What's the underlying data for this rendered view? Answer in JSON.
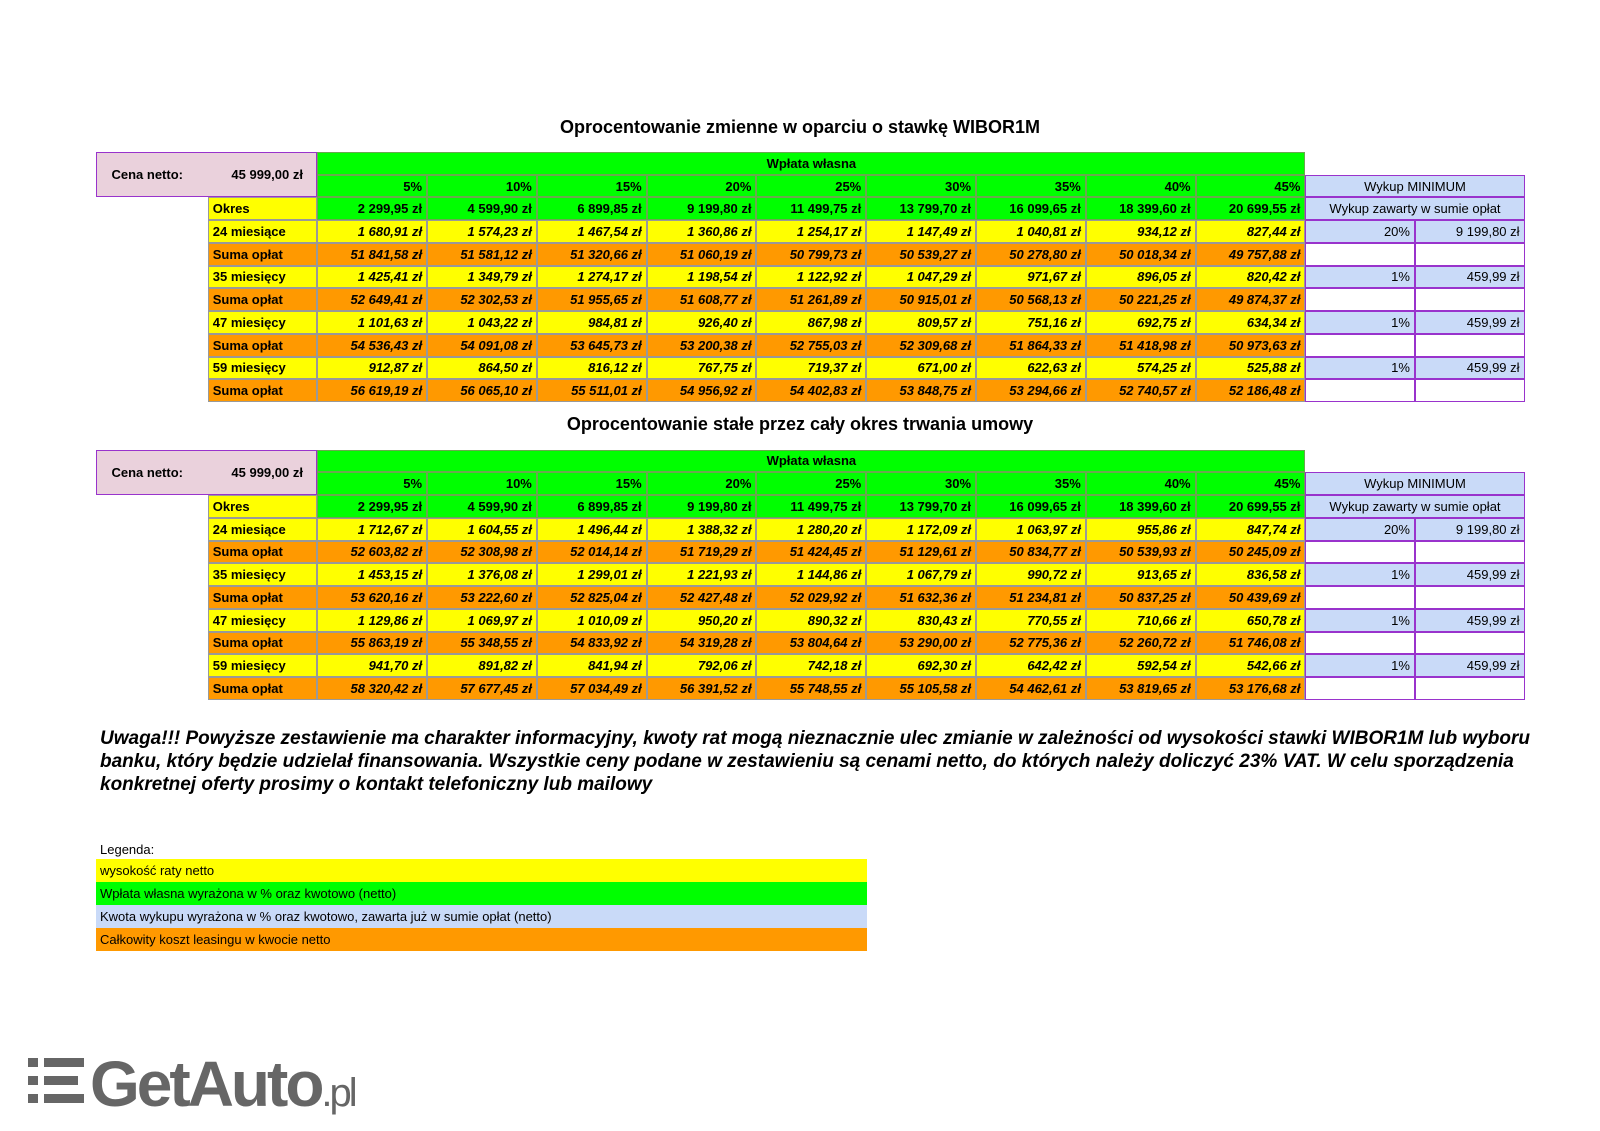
{
  "tables": [
    {
      "title": "Oprocentowanie zmienne w oparciu o stawkę WIBOR1M",
      "price_label": "Cena netto:",
      "price": "45 999,00 zł",
      "group_header": "Wpłata własna",
      "buyout_header": "Wykup MINIMUM",
      "percents": [
        "5%",
        "10%",
        "15%",
        "20%",
        "25%",
        "30%",
        "35%",
        "40%",
        "45%"
      ],
      "okres_label": "Okres",
      "down_payments": [
        "2 299,95 zł",
        "4 599,90 zł",
        "6 899,85 zł",
        "9 199,80 zł",
        "11 499,75 zł",
        "13 799,70 zł",
        "16 099,65 zł",
        "18 399,60 zł",
        "20 699,55 zł"
      ],
      "buyout_desc": "Wykup zawarty w sumie opłat",
      "periods": [
        {
          "label": "24 miesiące",
          "rates": [
            "1 680,91 zł",
            "1 574,23 zł",
            "1 467,54 zł",
            "1 360,86 zł",
            "1 254,17 zł",
            "1 147,49 zł",
            "1 040,81 zł",
            "934,12 zł",
            "827,44 zł"
          ],
          "buyout_pct": "20%",
          "buyout_amount": "9 199,80 zł",
          "sum_label": "Suma opłat",
          "sums": [
            "51 841,58 zł",
            "51 581,12 zł",
            "51 320,66 zł",
            "51 060,19 zł",
            "50 799,73 zł",
            "50 539,27 zł",
            "50 278,80 zł",
            "50 018,34 zł",
            "49 757,88 zł"
          ]
        },
        {
          "label": "35 miesięcy",
          "rates": [
            "1 425,41 zł",
            "1 349,79 zł",
            "1 274,17 zł",
            "1 198,54 zł",
            "1 122,92 zł",
            "1 047,29 zł",
            "971,67 zł",
            "896,05 zł",
            "820,42 zł"
          ],
          "buyout_pct": "1%",
          "buyout_amount": "459,99 zł",
          "sum_label": "Suma opłat",
          "sums": [
            "52 649,41 zł",
            "52 302,53 zł",
            "51 955,65 zł",
            "51 608,77 zł",
            "51 261,89 zł",
            "50 915,01 zł",
            "50 568,13 zł",
            "50 221,25 zł",
            "49 874,37 zł"
          ]
        },
        {
          "label": "47 miesięcy",
          "rates": [
            "1 101,63 zł",
            "1 043,22 zł",
            "984,81 zł",
            "926,40 zł",
            "867,98 zł",
            "809,57 zł",
            "751,16 zł",
            "692,75 zł",
            "634,34 zł"
          ],
          "buyout_pct": "1%",
          "buyout_amount": "459,99 zł",
          "sum_label": "Suma opłat",
          "sums": [
            "54 536,43 zł",
            "54 091,08 zł",
            "53 645,73 zł",
            "53 200,38 zł",
            "52 755,03 zł",
            "52 309,68 zł",
            "51 864,33 zł",
            "51 418,98 zł",
            "50 973,63 zł"
          ]
        },
        {
          "label": "59 miesięcy",
          "rates": [
            "912,87 zł",
            "864,50 zł",
            "816,12 zł",
            "767,75 zł",
            "719,37 zł",
            "671,00 zł",
            "622,63 zł",
            "574,25 zł",
            "525,88 zł"
          ],
          "buyout_pct": "1%",
          "buyout_amount": "459,99 zł",
          "sum_label": "Suma opłat",
          "sums": [
            "56 619,19 zł",
            "56 065,10 zł",
            "55 511,01 zł",
            "54 956,92 zł",
            "54 402,83 zł",
            "53 848,75 zł",
            "53 294,66 zł",
            "52 740,57 zł",
            "52 186,48 zł"
          ]
        }
      ]
    },
    {
      "title": "Oprocentowanie stałe przez cały okres trwania umowy",
      "price_label": "Cena netto:",
      "price": "45 999,00 zł",
      "group_header": "Wpłata własna",
      "buyout_header": "Wykup MINIMUM",
      "percents": [
        "5%",
        "10%",
        "15%",
        "20%",
        "25%",
        "30%",
        "35%",
        "40%",
        "45%"
      ],
      "okres_label": "Okres",
      "down_payments": [
        "2 299,95 zł",
        "4 599,90 zł",
        "6 899,85 zł",
        "9 199,80 zł",
        "11 499,75 zł",
        "13 799,70 zł",
        "16 099,65 zł",
        "18 399,60 zł",
        "20 699,55 zł"
      ],
      "buyout_desc": "Wykup zawarty w sumie opłat",
      "periods": [
        {
          "label": "24 miesiące",
          "rates": [
            "1 712,67 zł",
            "1 604,55 zł",
            "1 496,44 zł",
            "1 388,32 zł",
            "1 280,20 zł",
            "1 172,09 zł",
            "1 063,97 zł",
            "955,86 zł",
            "847,74 zł"
          ],
          "buyout_pct": "20%",
          "buyout_amount": "9 199,80 zł",
          "sum_label": "Suma opłat",
          "sums": [
            "52 603,82 zł",
            "52 308,98 zł",
            "52 014,14 zł",
            "51 719,29 zł",
            "51 424,45 zł",
            "51 129,61 zł",
            "50 834,77 zł",
            "50 539,93 zł",
            "50 245,09 zł"
          ]
        },
        {
          "label": "35 miesięcy",
          "rates": [
            "1 453,15 zł",
            "1 376,08 zł",
            "1 299,01 zł",
            "1 221,93 zł",
            "1 144,86 zł",
            "1 067,79 zł",
            "990,72 zł",
            "913,65 zł",
            "836,58 zł"
          ],
          "buyout_pct": "1%",
          "buyout_amount": "459,99 zł",
          "sum_label": "Suma opłat",
          "sums": [
            "53 620,16 zł",
            "53 222,60 zł",
            "52 825,04 zł",
            "52 427,48 zł",
            "52 029,92 zł",
            "51 632,36 zł",
            "51 234,81 zł",
            "50 837,25 zł",
            "50 439,69 zł"
          ]
        },
        {
          "label": "47 miesięcy",
          "rates": [
            "1 129,86 zł",
            "1 069,97 zł",
            "1 010,09 zł",
            "950,20 zł",
            "890,32 zł",
            "830,43 zł",
            "770,55 zł",
            "710,66 zł",
            "650,78 zł"
          ],
          "buyout_pct": "1%",
          "buyout_amount": "459,99 zł",
          "sum_label": "Suma opłat",
          "sums": [
            "55 863,19 zł",
            "55 348,55 zł",
            "54 833,92 zł",
            "54 319,28 zł",
            "53 804,64 zł",
            "53 290,00 zł",
            "52 775,36 zł",
            "52 260,72 zł",
            "51 746,08 zł"
          ]
        },
        {
          "label": "59 miesięcy",
          "rates": [
            "941,70 zł",
            "891,82 zł",
            "841,94 zł",
            "792,06 zł",
            "742,18 zł",
            "692,30 zł",
            "642,42 zł",
            "592,54 zł",
            "542,66 zł"
          ],
          "buyout_pct": "1%",
          "buyout_amount": "459,99 zł",
          "sum_label": "Suma opłat",
          "sums": [
            "58 320,42 zł",
            "57 677,45 zł",
            "57 034,49 zł",
            "56 391,52 zł",
            "55 748,55 zł",
            "55 105,58 zł",
            "54 462,61 zł",
            "53 819,65 zł",
            "53 176,68 zł"
          ]
        }
      ]
    }
  ],
  "notice": "Uwaga!!! Powyższe zestawienie ma charakter informacyjny, kwoty rat mogą nieznacznie ulec zmianie w zależności od wysokości stawki WIBOR1M lub wyboru banku, który będzie udzielał finansowania. Wszystkie ceny podane w zestawieniu są cenami netto, do których należy doliczyć 23% VAT. W celu sporządzenia konkretnej oferty prosimy o kontakt telefoniczny lub mailowy",
  "legend": {
    "title": "Legenda:",
    "items": [
      "wysokość raty netto",
      "Wpłata własna wyrażona w % oraz kwotowo (netto)",
      "Kwota wykupu wyrażona w % oraz kwotowo, zawarta już w sumie opłat (netto)",
      "Całkowity koszt leasingu w kwocie netto"
    ]
  },
  "logo": {
    "name": "GetAuto",
    "suffix": ".pl"
  }
}
